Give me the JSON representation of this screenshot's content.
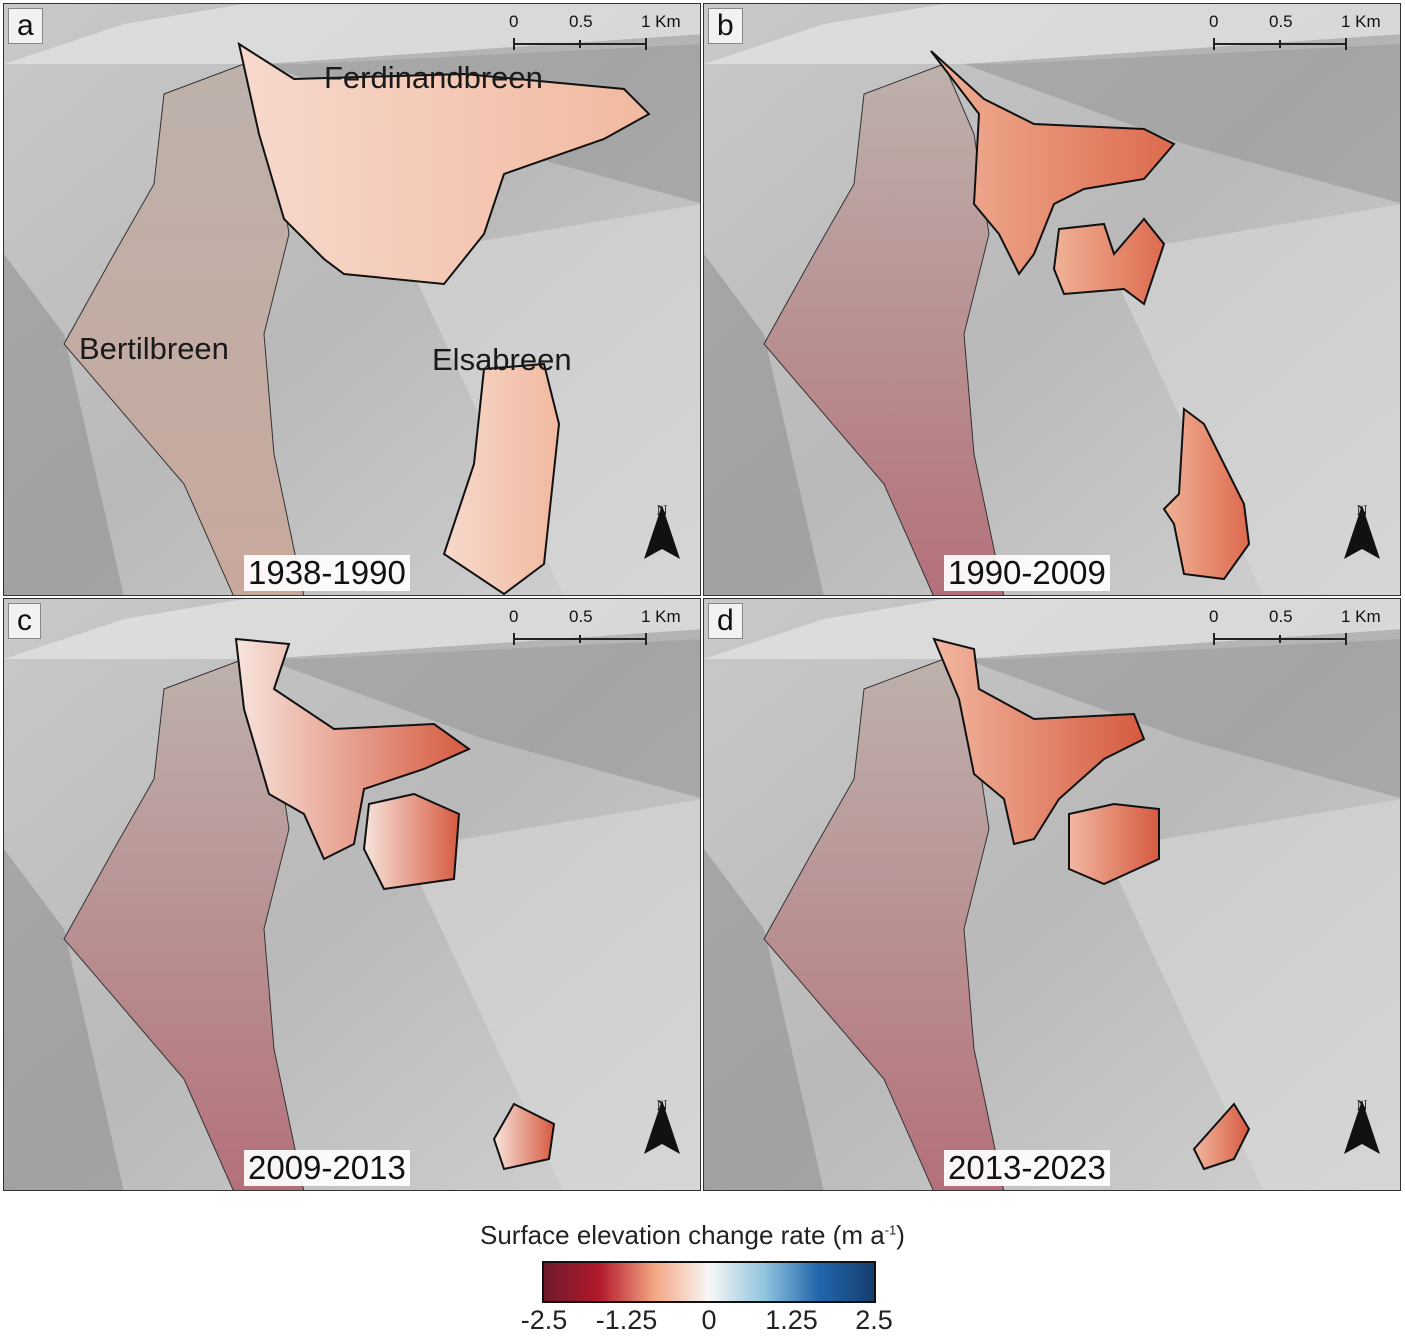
{
  "panels": [
    {
      "letter": "a",
      "period": "1938-1990",
      "labels": [
        "Ferdinandbreen",
        "Bertilbreen",
        "Elsabreen"
      ]
    },
    {
      "letter": "b",
      "period": "1990-2009"
    },
    {
      "letter": "c",
      "period": "2009-2013"
    },
    {
      "letter": "d",
      "period": "2013-2023"
    }
  ],
  "scale_bar": {
    "ticks": [
      "0",
      "0.5",
      "1 Km"
    ]
  },
  "north_label": "N",
  "legend": {
    "title": "Surface elevation change rate (m a",
    "title_sup": "-1",
    "title_end": ")",
    "ticks": [
      "-2.5",
      "-1.25",
      "0",
      "1.25",
      "2.5"
    ],
    "min": -2.5,
    "max": 2.5,
    "colors": [
      "#6e1a2c",
      "#b2182b",
      "#f4a582",
      "#f7f7f7",
      "#92c5de",
      "#2166ac",
      "#163e6e"
    ]
  }
}
